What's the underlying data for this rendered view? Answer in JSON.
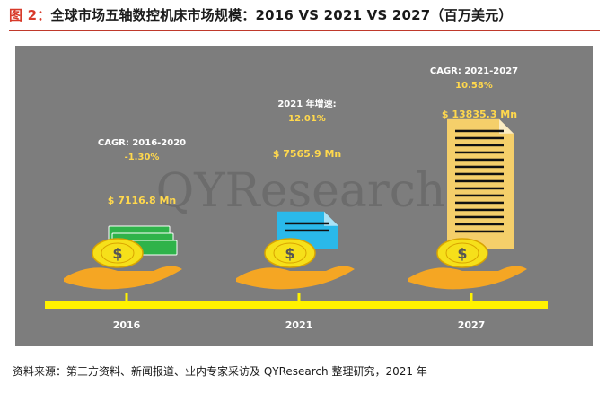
{
  "title_prefix": "图 2：",
  "title_text": "全球市场五轴数控机床市场规模：2016 VS 2021 VS 2027（百万美元）",
  "watermark": "QYResearch",
  "source_text": "资料来源：第三方资料、新闻报道、业内专家采访及 QYResearch 整理研究，2021 年",
  "colors": {
    "panel": "#7d7d7d",
    "gold": "#f2c232",
    "hand": "#f5a623",
    "coin": "#f6e01a",
    "bar2016": "#2fb34a",
    "bar2021": "#2ab9ea",
    "bar2027": "#f5cf6a",
    "axis": "#fff200",
    "label": "#ffd84d"
  },
  "chart_data": {
    "type": "bar",
    "categories": [
      "2016",
      "2021",
      "2027"
    ],
    "values": [
      7116.8,
      7565.9,
      13835.3
    ],
    "value_labels": [
      "$ 7116.8 Mn",
      "$ 7565.9 Mn",
      "$ 13835.3 Mn"
    ],
    "unit": "百万美元",
    "annotations": [
      {
        "label": "CAGR: 2016-2020",
        "value": "-1.30%"
      },
      {
        "label": "2021 年增速:",
        "value": "12.01%"
      },
      {
        "label": "CAGR: 2021-2027",
        "value": "10.58%"
      }
    ]
  }
}
